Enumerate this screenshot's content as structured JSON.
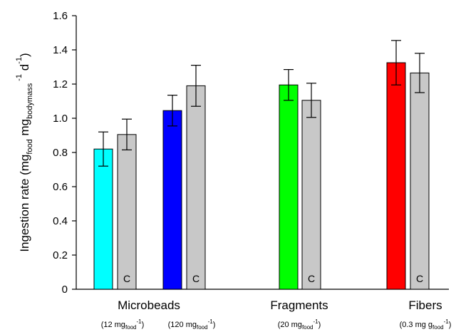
{
  "chart_data": {
    "type": "bar",
    "ylabel": {
      "prefix": "Ingestion rate (mg",
      "sub1": "food",
      "mid": " mg",
      "sub2": "bodymass",
      "sup1": "-1",
      "d": " d",
      "sup2": "-1",
      "suffix": ")"
    },
    "ylim": [
      0,
      1.6
    ],
    "yticks": [
      "0",
      "0.2",
      "0.4",
      "0.6",
      "0.8",
      "1.0",
      "1.2",
      "1.4",
      "1.6"
    ],
    "grid": false,
    "control_marker": "C",
    "groups": [
      {
        "label": "Microbeads",
        "concentrations": [
          {
            "open": "(12  mg",
            "sub": "food",
            "sup": "-1",
            "close": ")"
          },
          {
            "open": "(120 mg",
            "sub": "food",
            "sup": "-1",
            "close": ")"
          }
        ]
      },
      {
        "label": "Fragments",
        "concentrations": [
          {
            "open": "(20 mg",
            "sub": "food",
            "sup": "-1",
            "close": ")"
          }
        ]
      },
      {
        "label": "Fibers",
        "concentrations": [
          {
            "open": "(0.3 mg g",
            "sub": "food",
            "sup": "-1",
            "close": ")"
          }
        ]
      }
    ],
    "bars": [
      {
        "value": 0.82,
        "err": 0.1,
        "color": "#00ffff",
        "control": false
      },
      {
        "value": 0.905,
        "err": 0.09,
        "color": "#c8c8c8",
        "control": true
      },
      {
        "value": 1.045,
        "err": 0.09,
        "color": "#0000ff",
        "control": false
      },
      {
        "value": 1.19,
        "err": 0.12,
        "color": "#c8c8c8",
        "control": true
      },
      {
        "value": 1.195,
        "err": 0.09,
        "color": "#00ff00",
        "control": false
      },
      {
        "value": 1.105,
        "err": 0.1,
        "color": "#c8c8c8",
        "control": true
      },
      {
        "value": 1.325,
        "err": 0.13,
        "color": "#ff0000",
        "control": false
      },
      {
        "value": 1.265,
        "err": 0.115,
        "color": "#c8c8c8",
        "control": true
      }
    ]
  }
}
